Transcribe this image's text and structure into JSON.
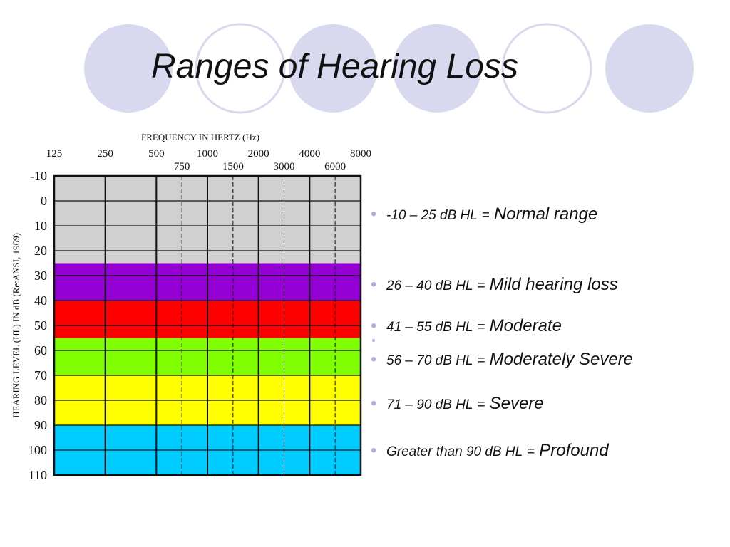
{
  "slide": {
    "title": "Ranges of Hearing Loss",
    "colors": {
      "deco_circle_fill": "#d8d8ef",
      "deco_circle_stroke": "#d8d8ef",
      "bullet_color": "#b0aee0"
    }
  },
  "chart_data": {
    "type": "heatmap",
    "title": "FREQUENCY IN HERTZ (Hz)",
    "ylabel": "HEARING LEVEL (HL) IN dB (Re:ANSI, 1969)",
    "x_ticks_top": [
      "125",
      "250",
      "500",
      "1000",
      "2000",
      "4000",
      "8000"
    ],
    "x_ticks_bottom": [
      "750",
      "1500",
      "3000",
      "6000"
    ],
    "y_ticks": [
      "-10",
      "0",
      "10",
      "20",
      "30",
      "40",
      "50",
      "60",
      "70",
      "80",
      "90",
      "100",
      "110"
    ],
    "y_values": [
      -10,
      0,
      10,
      20,
      30,
      40,
      50,
      60,
      70,
      80,
      90,
      100,
      110
    ],
    "ylim": [
      -10,
      110
    ],
    "bands": [
      {
        "from": -10,
        "to": 25,
        "color": "#d0d0d0",
        "label": "Normal range"
      },
      {
        "from": 25,
        "to": 40,
        "color": "#9400d3",
        "label": "Mild hearing loss"
      },
      {
        "from": 40,
        "to": 55,
        "color": "#ff0000",
        "label": "Moderate"
      },
      {
        "from": 55,
        "to": 70,
        "color": "#80ff00",
        "label": "Moderately Severe"
      },
      {
        "from": 70,
        "to": 90,
        "color": "#ffff00",
        "label": "Severe"
      },
      {
        "from": 90,
        "to": 110,
        "color": "#00ccff",
        "label": "Profound"
      }
    ],
    "grid": true
  },
  "bullets": [
    {
      "range": "-10 – 25 dB HL",
      "eq": "=",
      "category": "Normal range"
    },
    {
      "range": "26 – 40 dB HL",
      "eq": "=",
      "category": "Mild hearing loss"
    },
    {
      "range": "41 –  55 dB HL",
      "eq": "=",
      "category": "Moderate"
    },
    {
      "range": "56 – 70 dB HL",
      "eq": "=",
      "category": "Moderately Severe"
    },
    {
      "range": "71 – 90 dB HL",
      "eq": "=",
      "category": "Severe"
    },
    {
      "range": "Greater than 90 dB HL",
      "eq": "=",
      "category": "Profound"
    }
  ]
}
